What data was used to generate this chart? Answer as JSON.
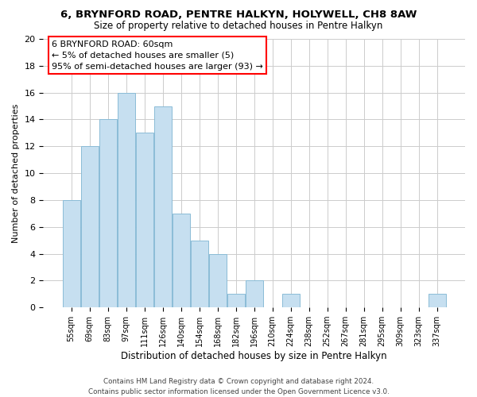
{
  "title": "6, BRYNFORD ROAD, PENTRE HALKYN, HOLYWELL, CH8 8AW",
  "subtitle": "Size of property relative to detached houses in Pentre Halkyn",
  "xlabel": "Distribution of detached houses by size in Pentre Halkyn",
  "ylabel": "Number of detached properties",
  "bar_labels": [
    "55sqm",
    "69sqm",
    "83sqm",
    "97sqm",
    "111sqm",
    "126sqm",
    "140sqm",
    "154sqm",
    "168sqm",
    "182sqm",
    "196sqm",
    "210sqm",
    "224sqm",
    "238sqm",
    "252sqm",
    "267sqm",
    "281sqm",
    "295sqm",
    "309sqm",
    "323sqm",
    "337sqm"
  ],
  "bar_values": [
    8,
    12,
    14,
    16,
    13,
    15,
    7,
    5,
    4,
    1,
    2,
    0,
    1,
    0,
    0,
    0,
    0,
    0,
    0,
    0,
    1
  ],
  "bar_color": "#c6dff0",
  "bar_edge_color": "#8bbcd6",
  "ylim": [
    0,
    20
  ],
  "yticks": [
    0,
    2,
    4,
    6,
    8,
    10,
    12,
    14,
    16,
    18,
    20
  ],
  "annotation_title": "6 BRYNFORD ROAD: 60sqm",
  "annotation_line1": "← 5% of detached houses are smaller (5)",
  "annotation_line2": "95% of semi-detached houses are larger (93) →",
  "footer_line1": "Contains HM Land Registry data © Crown copyright and database right 2024.",
  "footer_line2": "Contains public sector information licensed under the Open Government Licence v3.0.",
  "background_color": "#ffffff",
  "grid_color": "#cccccc"
}
